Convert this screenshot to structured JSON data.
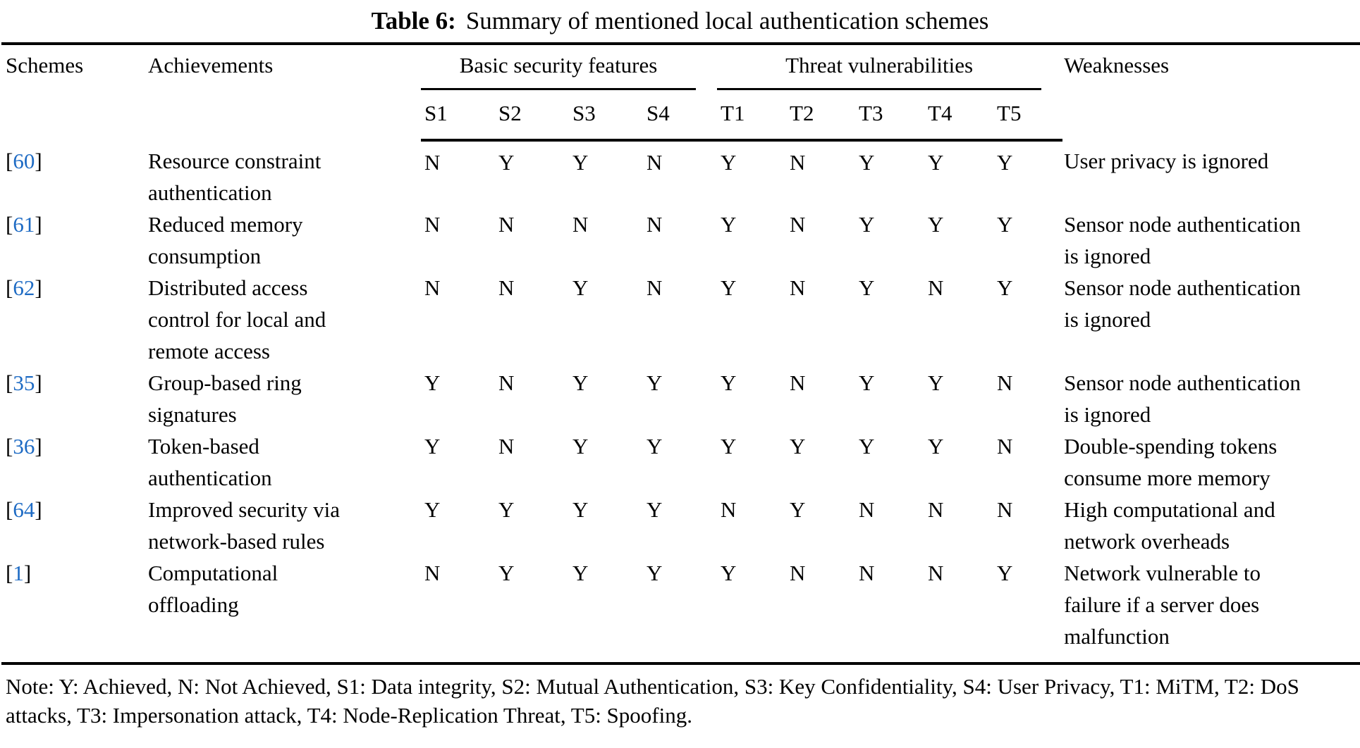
{
  "title": {
    "label": "Table 6:",
    "text": "Summary of mentioned local authentication schemes"
  },
  "link_color": "#1e6bc4",
  "table": {
    "columns": {
      "schemes": "Schemes",
      "achievements": "Achievements",
      "basic_group": "Basic security features",
      "threat_group": "Threat vulnerabilities",
      "weaknesses": "Weaknesses",
      "basic_subs": [
        "S1",
        "S2",
        "S3",
        "S4"
      ],
      "threat_subs": [
        "T1",
        "T2",
        "T3",
        "T4",
        "T5"
      ]
    },
    "rows": [
      {
        "ref": "60",
        "achievement_lines": [
          "Resource constraint",
          "authentication"
        ],
        "s": [
          "N",
          "Y",
          "Y",
          "N"
        ],
        "t": [
          "Y",
          "N",
          "Y",
          "Y",
          "Y"
        ],
        "weakness_lines": [
          "User privacy is ignored"
        ]
      },
      {
        "ref": "61",
        "achievement_lines": [
          "Reduced memory",
          "consumption"
        ],
        "s": [
          "N",
          "N",
          "N",
          "N"
        ],
        "t": [
          "Y",
          "N",
          "Y",
          "Y",
          "Y"
        ],
        "weakness_lines": [
          "Sensor node authentication",
          "is ignored"
        ]
      },
      {
        "ref": "62",
        "achievement_lines": [
          "Distributed access",
          "control for local and",
          "remote access"
        ],
        "s": [
          "N",
          "N",
          "Y",
          "N"
        ],
        "t": [
          "Y",
          "N",
          "Y",
          "N",
          "Y"
        ],
        "weakness_lines": [
          "Sensor node authentication",
          "is ignored"
        ]
      },
      {
        "ref": "35",
        "achievement_lines": [
          "Group-based ring",
          "signatures"
        ],
        "s": [
          "Y",
          "N",
          "Y",
          "Y"
        ],
        "t": [
          "Y",
          "N",
          "Y",
          "Y",
          "N"
        ],
        "weakness_lines": [
          "Sensor node authentication",
          "is ignored"
        ]
      },
      {
        "ref": "36",
        "achievement_lines": [
          "Token-based",
          "authentication"
        ],
        "s": [
          "Y",
          "N",
          "Y",
          "Y"
        ],
        "t": [
          "Y",
          "Y",
          "Y",
          "Y",
          "N"
        ],
        "weakness_lines": [
          "Double-spending tokens",
          "consume more memory"
        ]
      },
      {
        "ref": "64",
        "achievement_lines": [
          "Improved security via",
          "network-based rules"
        ],
        "s": [
          "Y",
          "Y",
          "Y",
          "Y"
        ],
        "t": [
          "N",
          "Y",
          "N",
          "N",
          "N"
        ],
        "weakness_lines": [
          "High computational and",
          "network overheads"
        ]
      },
      {
        "ref": "1",
        "achievement_lines": [
          "Computational",
          "offloading"
        ],
        "s": [
          "N",
          "Y",
          "Y",
          "Y"
        ],
        "t": [
          "Y",
          "N",
          "N",
          "N",
          "Y"
        ],
        "weakness_lines": [
          "Network vulnerable to",
          "failure if a server does",
          "malfunction"
        ]
      }
    ]
  },
  "note": "Note: Y: Achieved, N: Not Achieved, S1: Data integrity, S2: Mutual Authentication, S3: Key Confidentiality, S4: User Privacy, T1: MiTM, T2: DoS attacks, T3: Impersonation attack, T4: Node-Replication Threat, T5: Spoofing."
}
